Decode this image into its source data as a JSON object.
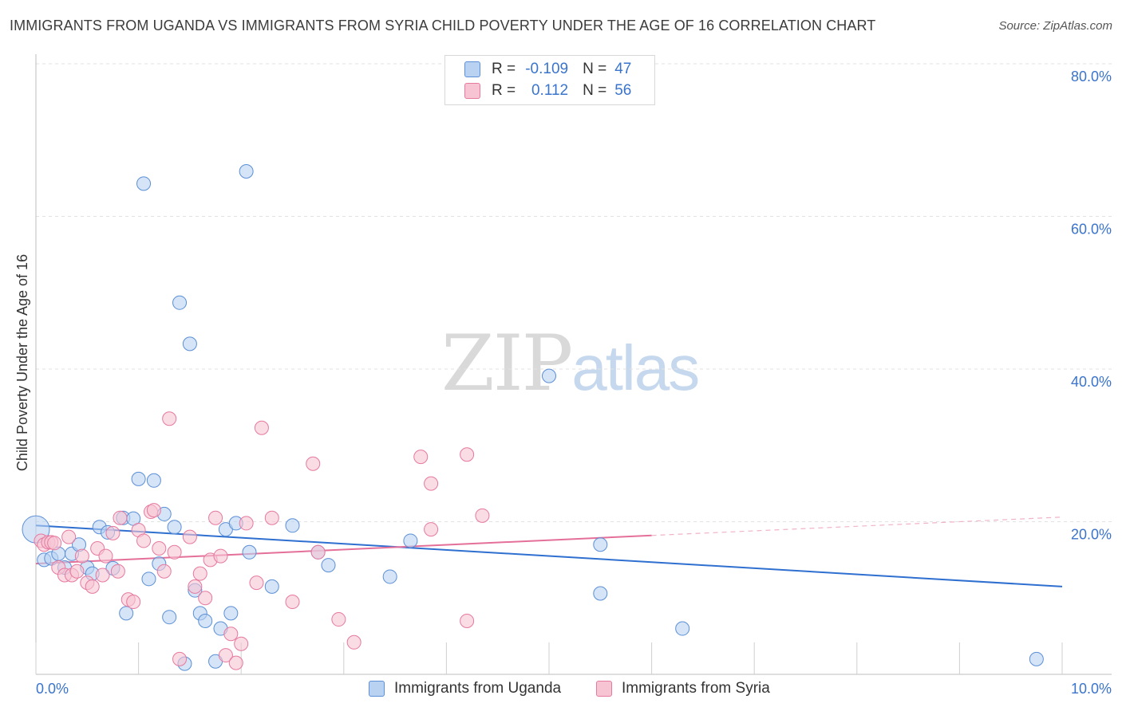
{
  "title": "IMMIGRANTS FROM UGANDA VS IMMIGRANTS FROM SYRIA CHILD POVERTY UNDER THE AGE OF 16 CORRELATION CHART",
  "source": "Source: ZipAtlas.com",
  "watermark": {
    "zip": "ZIP",
    "atlas": "atlas"
  },
  "colors": {
    "uganda": "#5b8fd6",
    "uganda_fill": "#b9d2f2",
    "uganda_line": "#2e6fd0",
    "syria": "#e6799e",
    "syria_fill": "#f7c4d4",
    "syria_line": "#e4709a",
    "axis_tick_label": "#3a74cc"
  },
  "legend": {
    "rows": [
      {
        "r_label": "R =",
        "r_value": "-0.109",
        "n_label": "N =",
        "n_value": "47"
      },
      {
        "r_label": "R =",
        "r_value": "0.112",
        "n_label": "N =",
        "n_value": "56"
      }
    ]
  },
  "bottom_legend": {
    "uganda": "Immigrants from Uganda",
    "syria": "Immigrants from Syria"
  },
  "chart_data": {
    "type": "scatter",
    "title": "IMMIGRANTS FROM UGANDA VS IMMIGRANTS FROM SYRIA CHILD POVERTY UNDER THE AGE OF 16 CORRELATION CHART",
    "xlabel": "",
    "ylabel": "Child Poverty Under the Age of 16",
    "xlim": [
      0,
      10
    ],
    "ylim": [
      0,
      80
    ],
    "x_tick_labels": [
      "0.0%",
      "10.0%"
    ],
    "y_ticks": [
      20,
      40,
      60,
      80
    ],
    "y_tick_labels": [
      "20.0%",
      "40.0%",
      "60.0%",
      "80.0%"
    ],
    "grid": true,
    "series": [
      {
        "name": "Immigrants from Uganda",
        "x": [
          0.0,
          0.08,
          0.15,
          0.22,
          0.28,
          0.35,
          0.42,
          0.5,
          0.55,
          0.62,
          0.7,
          0.75,
          0.85,
          0.88,
          0.95,
          1.0,
          1.05,
          1.1,
          1.15,
          1.2,
          1.25,
          1.3,
          1.35,
          1.4,
          1.45,
          1.5,
          1.55,
          1.6,
          1.65,
          1.75,
          1.8,
          1.85,
          1.9,
          1.95,
          2.05,
          2.08,
          2.3,
          2.5,
          2.75,
          2.85,
          3.45,
          3.65,
          5.0,
          5.5,
          5.5,
          6.3,
          9.75
        ],
        "y": [
          19.0,
          15.0,
          15.2,
          15.8,
          14.0,
          15.8,
          17.0,
          14.0,
          13.2,
          19.3,
          18.6,
          13.9,
          20.5,
          8.0,
          20.4,
          25.6,
          64.3,
          12.5,
          25.4,
          14.5,
          21.0,
          7.5,
          19.3,
          48.7,
          1.4,
          43.3,
          11.0,
          8.0,
          7.0,
          1.7,
          6.0,
          19.0,
          8.0,
          19.8,
          65.9,
          16.0,
          11.5,
          19.5,
          16.0,
          14.3,
          12.8,
          17.5,
          39.1,
          10.6,
          17.0,
          6.0,
          2.0
        ]
      },
      {
        "name": "Immigrants from Syria",
        "x": [
          0.05,
          0.08,
          0.12,
          0.15,
          0.18,
          0.22,
          0.28,
          0.32,
          0.35,
          0.4,
          0.45,
          0.5,
          0.55,
          0.6,
          0.65,
          0.68,
          0.75,
          0.8,
          0.82,
          0.9,
          0.95,
          1.0,
          1.05,
          1.12,
          1.15,
          1.2,
          1.25,
          1.3,
          1.35,
          1.4,
          1.5,
          1.55,
          1.6,
          1.65,
          1.7,
          1.75,
          1.8,
          1.85,
          1.9,
          1.95,
          2.0,
          2.05,
          2.15,
          2.2,
          2.3,
          2.5,
          2.7,
          2.75,
          2.95,
          3.1,
          3.75,
          3.85,
          3.85,
          4.2,
          4.2,
          4.35
        ],
        "y": [
          17.5,
          17.0,
          17.3,
          17.3,
          17.2,
          14.0,
          13.0,
          18.0,
          13.0,
          13.5,
          15.5,
          12.0,
          11.5,
          16.5,
          13.0,
          15.5,
          18.5,
          13.5,
          20.5,
          9.8,
          9.5,
          18.9,
          17.5,
          21.3,
          21.5,
          16.5,
          13.5,
          33.5,
          16.0,
          2.0,
          18.0,
          11.5,
          13.2,
          10.0,
          15.0,
          20.5,
          15.5,
          2.5,
          5.3,
          1.5,
          4.0,
          19.8,
          12.0,
          32.3,
          20.5,
          9.5,
          27.6,
          16.0,
          7.2,
          4.2,
          28.5,
          25.0,
          19.0,
          28.8,
          7.0,
          20.8
        ]
      }
    ],
    "trend_lines": [
      {
        "name": "Immigrants from Uganda",
        "x": [
          0,
          10
        ],
        "y": [
          19.5,
          11.5
        ]
      },
      {
        "name": "Immigrants from Syria",
        "x": [
          0,
          6
        ],
        "y": [
          14.5,
          18.2
        ],
        "dashed_extension": {
          "x": [
            6,
            10
          ],
          "y": [
            18.2,
            20.6
          ]
        }
      }
    ]
  }
}
